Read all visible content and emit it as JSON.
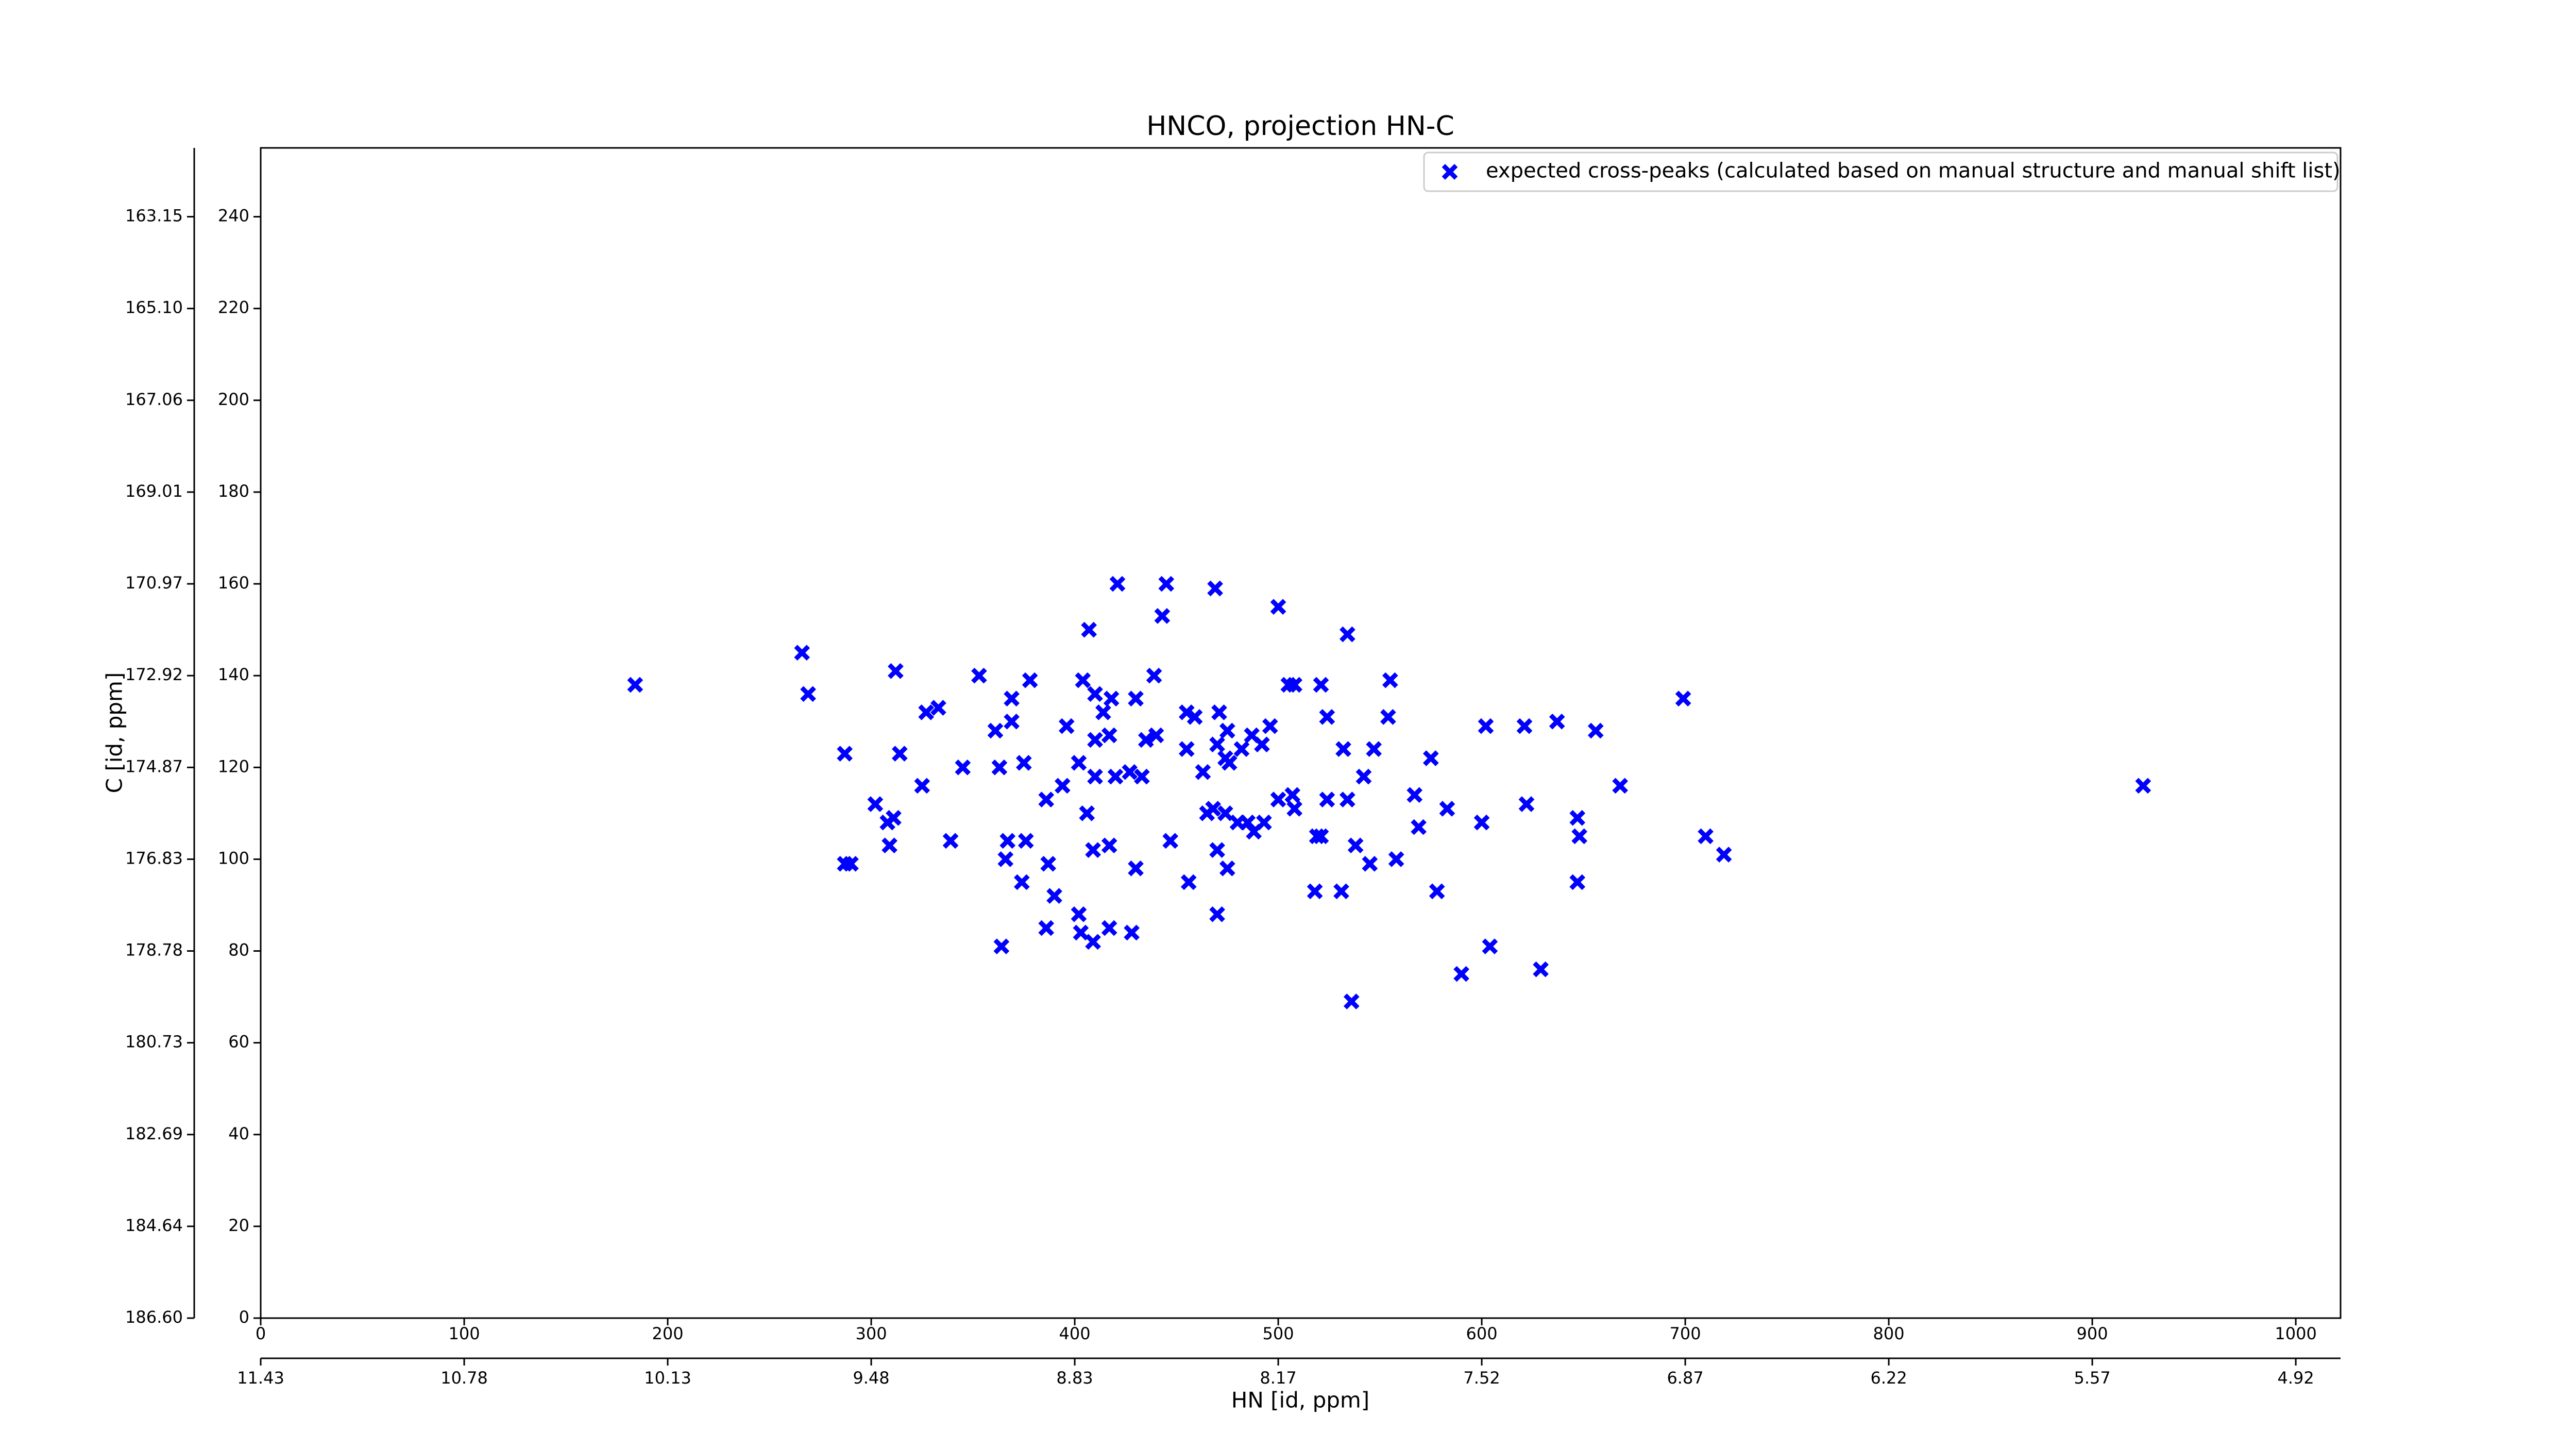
{
  "chart_data": {
    "type": "scatter",
    "title": "HNCO, projection HN-C",
    "xlabel": "HN [id, ppm]",
    "ylabel": "C [id, ppm]",
    "xlim": [
      0,
      1022
    ],
    "ylim": [
      0,
      255
    ],
    "xticks": [
      0,
      100,
      200,
      300,
      400,
      500,
      600,
      700,
      800,
      900,
      1000
    ],
    "yticks": [
      0,
      20,
      40,
      60,
      80,
      100,
      120,
      140,
      160,
      180,
      200,
      220,
      240
    ],
    "x2ticks": [
      {
        "value": 0,
        "label": "11.43"
      },
      {
        "value": 100,
        "label": "10.78"
      },
      {
        "value": 200,
        "label": "10.13"
      },
      {
        "value": 300,
        "label": "9.48"
      },
      {
        "value": 400,
        "label": "8.83"
      },
      {
        "value": 500,
        "label": "8.17"
      },
      {
        "value": 600,
        "label": "7.52"
      },
      {
        "value": 700,
        "label": "6.87"
      },
      {
        "value": 800,
        "label": "6.22"
      },
      {
        "value": 900,
        "label": "5.57"
      },
      {
        "value": 1000,
        "label": "4.92"
      }
    ],
    "y2ticks": [
      {
        "value": 0,
        "label": "186.60"
      },
      {
        "value": 20,
        "label": "184.64"
      },
      {
        "value": 40,
        "label": "182.69"
      },
      {
        "value": 60,
        "label": "180.73"
      },
      {
        "value": 80,
        "label": "178.78"
      },
      {
        "value": 100,
        "label": "176.83"
      },
      {
        "value": 120,
        "label": "174.87"
      },
      {
        "value": 140,
        "label": "172.92"
      },
      {
        "value": 160,
        "label": "170.97"
      },
      {
        "value": 180,
        "label": "169.01"
      },
      {
        "value": 200,
        "label": "167.06"
      },
      {
        "value": 220,
        "label": "165.10"
      },
      {
        "value": 240,
        "label": "163.15"
      }
    ],
    "legend": "upper right",
    "series": [
      {
        "name": "expected cross-peaks (calculated based on manual structure and manual shift list)",
        "color": "#0000ff",
        "x": [
          184,
          266,
          269,
          287,
          312,
          314,
          302,
          308,
          311,
          309,
          290,
          287,
          327,
          333,
          325,
          339,
          345,
          353,
          363,
          361,
          369,
          378,
          369,
          375,
          386,
          367,
          376,
          366,
          394,
          396,
          404,
          407,
          421,
          445,
          469,
          443,
          500,
          534,
          410,
          414,
          418,
          410,
          417,
          402,
          406,
          410,
          420,
          427,
          433,
          435,
          440,
          430,
          439,
          455,
          459,
          471,
          475,
          455,
          463,
          470,
          474,
          476,
          482,
          487,
          492,
          496,
          505,
          508,
          521,
          524,
          555,
          554,
          465,
          468,
          474,
          480,
          485,
          488,
          493,
          500,
          507,
          508,
          524,
          534,
          519,
          521,
          538,
          470,
          475,
          456,
          447,
          430,
          417,
          409,
          387,
          390,
          402,
          374,
          386,
          364,
          403,
          409,
          428,
          417,
          470,
          518,
          531,
          545,
          558,
          575,
          583,
          569,
          567,
          542,
          532,
          547,
          578,
          600,
          602,
          621,
          637,
          656,
          668,
          622,
          647,
          648,
          647,
          699,
          710,
          719,
          604,
          590,
          629,
          536,
          925
        ],
        "values": [
          138,
          145,
          136,
          123,
          141,
          123,
          112,
          108,
          109,
          103,
          99,
          99,
          132,
          133,
          116,
          104,
          120,
          140,
          120,
          128,
          130,
          139,
          135,
          121,
          113,
          104,
          104,
          100,
          116,
          129,
          139,
          150,
          160,
          160,
          159,
          153,
          155,
          149,
          136,
          132,
          135,
          126,
          127,
          121,
          110,
          118,
          118,
          119,
          118,
          126,
          127,
          135,
          140,
          132,
          131,
          132,
          128,
          124,
          119,
          125,
          122,
          121,
          124,
          127,
          125,
          129,
          138,
          138,
          138,
          131,
          139,
          131,
          110,
          111,
          110,
          108,
          108,
          106,
          108,
          113,
          114,
          111,
          113,
          113,
          105,
          105,
          103,
          102,
          98,
          95,
          104,
          98,
          103,
          102,
          99,
          92,
          88,
          95,
          85,
          81,
          84,
          82,
          84,
          85,
          88,
          93,
          93,
          99,
          100,
          122,
          111,
          107,
          114,
          118,
          124,
          124,
          93,
          108,
          129,
          129,
          130,
          128,
          116,
          112,
          109,
          105,
          95,
          135,
          105,
          101,
          81,
          75,
          76,
          69,
          116
        ]
      }
    ]
  }
}
